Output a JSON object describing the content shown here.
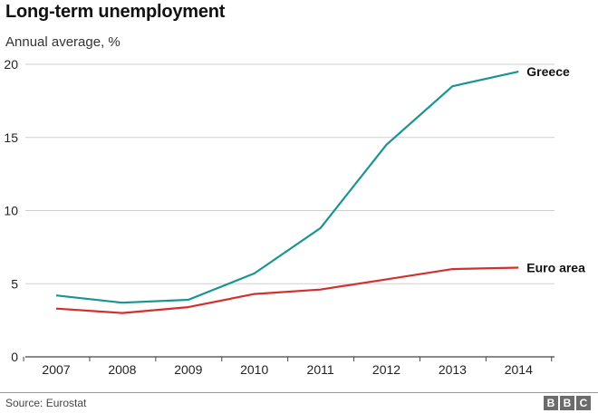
{
  "chart_data": {
    "type": "line",
    "title": "Long-term unemployment",
    "subtitle": "Annual average, %",
    "categories": [
      "2007",
      "2008",
      "2009",
      "2010",
      "2011",
      "2012",
      "2013",
      "2014"
    ],
    "ylim": [
      0,
      20
    ],
    "yticks": [
      0,
      5,
      10,
      15,
      20
    ],
    "grid": true,
    "series": [
      {
        "name": "Greece",
        "color": "#1a9491",
        "values": [
          4.2,
          3.7,
          3.9,
          5.7,
          8.8,
          14.5,
          18.5,
          19.5
        ]
      },
      {
        "name": "Euro area",
        "color": "#d32f2f",
        "values": [
          3.3,
          3.0,
          3.4,
          4.3,
          4.6,
          5.3,
          6.0,
          6.1
        ]
      }
    ]
  },
  "footer": {
    "source": "Source: Eurostat",
    "logo_letters": [
      "B",
      "B",
      "C"
    ]
  }
}
